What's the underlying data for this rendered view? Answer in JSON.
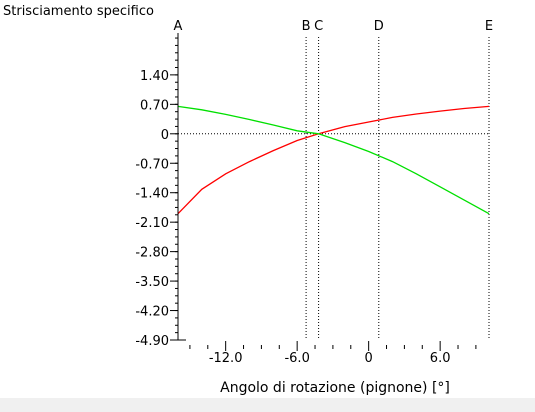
{
  "chart_data": {
    "type": "line",
    "title": "Strisciamento specifico",
    "xlabel": "Angolo di rotazione (pignone) [°]",
    "ylabel": "",
    "xlim": [
      -16.0,
      10.1
    ],
    "ylim": [
      -4.9,
      2.3
    ],
    "x_ticks": [
      -12.0,
      -6.0,
      0,
      6.0
    ],
    "x_tick_labels": [
      "-12.0",
      "-6.0",
      "0",
      "6.0"
    ],
    "y_ticks": [
      1.4,
      0.7,
      0,
      -0.7,
      -1.4,
      -2.1,
      -2.8,
      -3.5,
      -4.2,
      -4.9
    ],
    "y_tick_labels": [
      "1.40",
      "0.70",
      "0",
      "-0.70",
      "-1.40",
      "-2.10",
      "-2.80",
      "-3.50",
      "-4.20",
      "-4.90"
    ],
    "grid": false,
    "zero_line": "dotted",
    "markers": [
      {
        "label": "A",
        "x": -16.0
      },
      {
        "label": "B",
        "x": -5.25
      },
      {
        "label": "C",
        "x": -4.2
      },
      {
        "label": "D",
        "x": 0.85
      },
      {
        "label": "E",
        "x": 10.1
      }
    ],
    "series": [
      {
        "color": "#ff0000",
        "x": [
          -16.0,
          -14.0,
          -12.0,
          -10.0,
          -8.0,
          -6.0,
          -4.2,
          -2.0,
          0.0,
          2.0,
          4.0,
          6.0,
          8.0,
          10.1
        ],
        "y": [
          -1.9,
          -1.32,
          -0.95,
          -0.66,
          -0.4,
          -0.16,
          0.0,
          0.17,
          0.28,
          0.39,
          0.47,
          0.54,
          0.6,
          0.65
        ]
      },
      {
        "color": "#00e000",
        "x": [
          -16.0,
          -14.0,
          -12.0,
          -10.0,
          -8.0,
          -6.0,
          -4.2,
          -2.0,
          0.0,
          2.0,
          4.0,
          6.0,
          8.0,
          10.1
        ],
        "y": [
          0.65,
          0.57,
          0.46,
          0.34,
          0.21,
          0.07,
          0.0,
          -0.21,
          -0.42,
          -0.66,
          -0.95,
          -1.26,
          -1.57,
          -1.9
        ]
      }
    ]
  }
}
